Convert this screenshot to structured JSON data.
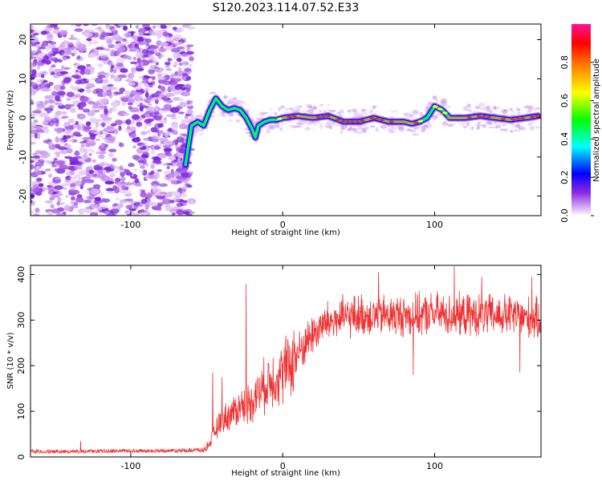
{
  "page": {
    "title": "S120.2023.114.07.52.E33"
  },
  "chart_data": [
    {
      "type": "heatmap",
      "title": "S120.2023.114.07.52.E33",
      "xlabel": "Height of straight line (km)",
      "ylabel": "Frequency (Hz)",
      "xlim": [
        -166,
        170
      ],
      "ylim": [
        -25,
        24
      ],
      "x_ticks": [
        -100,
        0,
        100
      ],
      "y_ticks": [
        -20,
        -10,
        0,
        10,
        20
      ],
      "colorbar": {
        "label": "Normalized spectral amplitude",
        "range": [
          0,
          1
        ],
        "ticks": [
          "0.0",
          "0.2",
          "0.4",
          "0.6",
          "0.8"
        ],
        "colors": [
          "#ffffff",
          "#d9b3f5",
          "#8a2be2",
          "#0000ff",
          "#00ffff",
          "#00ff00",
          "#ffff00",
          "#ff8000",
          "#ff0000",
          "#ff1493"
        ]
      },
      "ridge": {
        "x": [
          -64,
          -60,
          -56,
          -52,
          -48,
          -44,
          -40,
          -36,
          -32,
          -28,
          -24,
          -20,
          -18,
          -16,
          -12,
          -8,
          -4,
          0,
          10,
          20,
          30,
          40,
          50,
          60,
          70,
          80,
          85,
          90,
          95,
          100,
          105,
          110,
          120,
          130,
          140,
          150,
          160,
          168
        ],
        "y": [
          -12,
          -2,
          -1,
          -2,
          2,
          5,
          3,
          2,
          2.5,
          2,
          0,
          -3,
          -5,
          -2,
          -1,
          -0.5,
          -0.5,
          0,
          0.5,
          0,
          0.5,
          -1,
          -1,
          0,
          -1,
          -1,
          -1.5,
          -1,
          0,
          3,
          2,
          0,
          0,
          0.5,
          0,
          -0.5,
          0,
          0.5
        ]
      }
    },
    {
      "type": "line",
      "xlabel": "Height of straight line (km)",
      "ylabel": "SNR (10 * v/v)",
      "xlim": [
        -166,
        170
      ],
      "ylim": [
        0,
        420
      ],
      "x_ticks": [
        -100,
        0,
        100
      ],
      "y_ticks": [
        0,
        100,
        200,
        300,
        400
      ],
      "color": "#ee3333",
      "envelope": {
        "x": [
          -166,
          -140,
          -120,
          -100,
          -80,
          -60,
          -52,
          -48,
          -44,
          -40,
          -36,
          -32,
          -28,
          -24,
          -20,
          -16,
          -12,
          -8,
          -4,
          0,
          5,
          10,
          15,
          20,
          25,
          30,
          40,
          50,
          60,
          70,
          80,
          90,
          100,
          110,
          120,
          130,
          140,
          150,
          160,
          170
        ],
        "y": [
          10,
          10,
          11,
          12,
          12,
          13,
          15,
          30,
          60,
          80,
          90,
          100,
          110,
          115,
          125,
          140,
          155,
          170,
          175,
          185,
          205,
          225,
          250,
          270,
          285,
          295,
          305,
          310,
          310,
          310,
          310,
          310,
          315,
          310,
          310,
          310,
          310,
          310,
          305,
          300
        ]
      },
      "spikes": [
        {
          "x": -133,
          "y": 35
        },
        {
          "x": -46,
          "y": 185
        },
        {
          "x": -40,
          "y": 175
        },
        {
          "x": -24,
          "y": 380
        },
        {
          "x": 63,
          "y": 405
        },
        {
          "x": 113,
          "y": 418
        },
        {
          "x": 131,
          "y": 395
        },
        {
          "x": 164,
          "y": 395
        },
        {
          "x": 86,
          "y": 180
        },
        {
          "x": 156,
          "y": 185
        }
      ]
    }
  ]
}
